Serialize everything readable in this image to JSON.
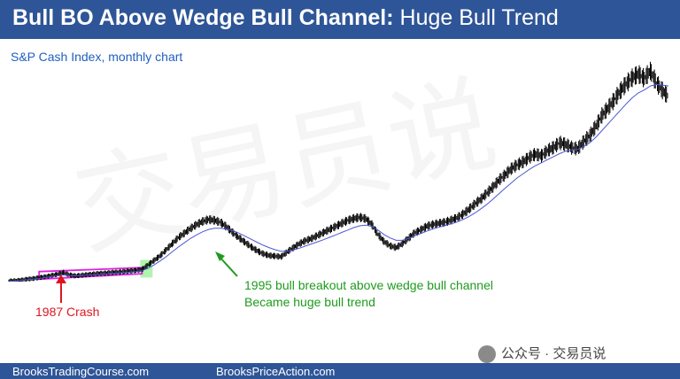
{
  "header": {
    "title_bold": "Bull BO Above Wedge Bull Channel:",
    "title_rest": " Huge Bull Trend"
  },
  "chart_data": {
    "type": "line",
    "title": "Bull BO Above Wedge Bull Channel: Huge Bull Trend",
    "subtitle": "S&P Cash Index, monthly chart",
    "series": [
      {
        "values": [
          0.02,
          0.03,
          0.05,
          0.08,
          0.1,
          0.13,
          0.16,
          0.2,
          0.24,
          0.3,
          0.22,
          0.19,
          0.21,
          0.23,
          0.25,
          0.27,
          0.28,
          0.3,
          0.31,
          0.33,
          0.35,
          0.37,
          0.4,
          0.55,
          0.7,
          0.85,
          1.05,
          1.25,
          1.45,
          1.6,
          1.75,
          1.88,
          1.98,
          2.05,
          2.02,
          1.95,
          1.8,
          1.62,
          1.45,
          1.3,
          1.15,
          1.02,
          0.92,
          0.86,
          0.84,
          0.82,
          0.98,
          1.12,
          1.25,
          1.35,
          1.42,
          1.52,
          1.62,
          1.72,
          1.82,
          1.92,
          2.02,
          2.08,
          2.12,
          2.07,
          1.88,
          1.55,
          1.32,
          1.18,
          1.12,
          1.25,
          1.42,
          1.6,
          1.7,
          1.82,
          1.88,
          1.92,
          1.96,
          2.02,
          2.1,
          2.22,
          2.38,
          2.56,
          2.72,
          2.92,
          3.12,
          3.35,
          3.52,
          3.72,
          3.85,
          3.95,
          4.1,
          4.2,
          4.15,
          4.32,
          4.42,
          4.58,
          4.52,
          4.42,
          4.38,
          4.62,
          4.82,
          5.12,
          5.48,
          5.72,
          5.98,
          6.28,
          6.52,
          6.72,
          6.85,
          6.7,
          6.95,
          6.55,
          6.3,
          6.1
        ],
        "trend_values": [
          0.01,
          0.02,
          0.04,
          0.06,
          0.08,
          0.1,
          0.13,
          0.16,
          0.19,
          0.22,
          0.2,
          0.19,
          0.2,
          0.21,
          0.22,
          0.24,
          0.25,
          0.27,
          0.28,
          0.3,
          0.31,
          0.33,
          0.36,
          0.44,
          0.55,
          0.68,
          0.82,
          0.98,
          1.14,
          1.28,
          1.42,
          1.54,
          1.64,
          1.72,
          1.76,
          1.76,
          1.73,
          1.68,
          1.6,
          1.5,
          1.4,
          1.3,
          1.2,
          1.12,
          1.05,
          1.0,
          1.0,
          1.04,
          1.1,
          1.17,
          1.24,
          1.31,
          1.38,
          1.46,
          1.54,
          1.62,
          1.7,
          1.78,
          1.84,
          1.86,
          1.82,
          1.7,
          1.55,
          1.44,
          1.36,
          1.36,
          1.42,
          1.5,
          1.58,
          1.66,
          1.73,
          1.79,
          1.84,
          1.9,
          1.96,
          2.04,
          2.14,
          2.26,
          2.4,
          2.55,
          2.72,
          2.9,
          3.08,
          3.25,
          3.42,
          3.56,
          3.7,
          3.82,
          3.92,
          4.02,
          4.12,
          4.22,
          4.3,
          4.34,
          4.36,
          4.45,
          4.58,
          4.76,
          4.98,
          5.2,
          5.42,
          5.64,
          5.86,
          6.06,
          6.22,
          6.32,
          6.45,
          6.5,
          6.48,
          6.45
        ]
      }
    ],
    "annotations": [
      "1995 bull breakout above wedge bull channel",
      "Became huge bull trend",
      "1987 Crash"
    ],
    "colors": {
      "price": "#000000",
      "moving_average": "#4a57d4",
      "wedge": "#e020e0",
      "breakout_box": "#8ef08e",
      "green_annotation": "#1e9b1e",
      "red_annotation": "#e0141e"
    },
    "grid": false,
    "axes_visible": false
  },
  "annotations": {
    "breakout_line1": "1995 bull breakout above wedge bull channel",
    "breakout_line2": "Became huge bull trend",
    "crash": "1987 Crash"
  },
  "watermark": {
    "text": "交易员说",
    "wechat_label": "公众号 · 交易员说"
  },
  "footer": {
    "left": "BrooksTradingCourse.com",
    "right": "BrooksPriceAction.com"
  }
}
